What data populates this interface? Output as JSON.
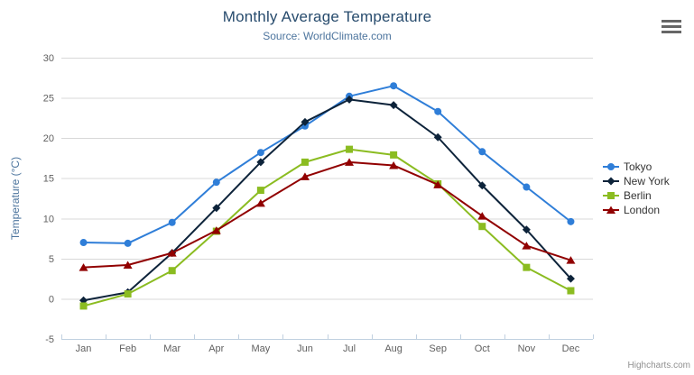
{
  "chart_data": {
    "type": "line",
    "title": "Monthly Average Temperature",
    "subtitle": "Source: WorldClimate.com",
    "categories": [
      "Jan",
      "Feb",
      "Mar",
      "Apr",
      "May",
      "Jun",
      "Jul",
      "Aug",
      "Sep",
      "Oct",
      "Nov",
      "Dec"
    ],
    "xlabel": "",
    "ylabel": "Temperature (°C)",
    "ylim": [
      -5,
      30
    ],
    "yticks": [
      -5,
      0,
      5,
      10,
      15,
      20,
      25,
      30
    ],
    "grid": true,
    "legend_position": "right",
    "series": [
      {
        "name": "Tokyo",
        "color": "#2f7ed8",
        "marker": "circle",
        "values": [
          7.0,
          6.9,
          9.5,
          14.5,
          18.2,
          21.5,
          25.2,
          26.5,
          23.3,
          18.3,
          13.9,
          9.6
        ]
      },
      {
        "name": "New York",
        "color": "#0d233a",
        "marker": "diamond",
        "values": [
          -0.2,
          0.8,
          5.7,
          11.3,
          17.0,
          22.0,
          24.8,
          24.1,
          20.1,
          14.1,
          8.6,
          2.5
        ]
      },
      {
        "name": "Berlin",
        "color": "#8bbc21",
        "marker": "square",
        "values": [
          -0.9,
          0.6,
          3.5,
          8.4,
          13.5,
          17.0,
          18.6,
          17.9,
          14.3,
          9.0,
          3.9,
          1.0
        ]
      },
      {
        "name": "London",
        "color": "#910000",
        "marker": "triangle",
        "values": [
          3.9,
          4.2,
          5.7,
          8.5,
          11.9,
          15.2,
          17.0,
          16.6,
          14.2,
          10.3,
          6.6,
          4.8
        ]
      }
    ]
  },
  "credits": {
    "label": "Highcharts.com"
  },
  "export_menu": {
    "icon": "hamburger-menu-icon"
  },
  "theme": {
    "title_color": "#274b6d",
    "subtitle_color": "#4d759e",
    "axis_title_color": "#4d759e",
    "tick_label_color": "#606060",
    "grid_color": "#d8d8d8",
    "axis_line_color": "#c0d0e0",
    "legend_text_color": "#333333",
    "credits_color": "#909090"
  }
}
